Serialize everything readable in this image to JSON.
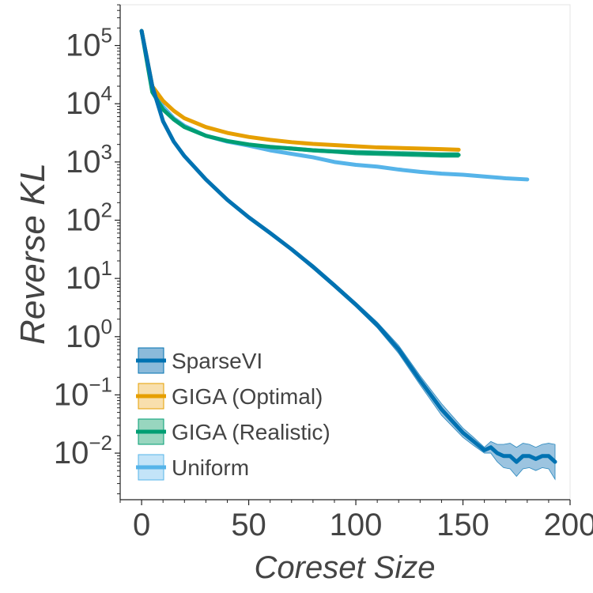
{
  "chart_data": {
    "type": "line",
    "xlabel": "Coreset Size",
    "ylabel": "Reverse KL",
    "xlim": [
      -10,
      200
    ],
    "ylim_log10": [
      -2.8,
      5.7
    ],
    "yscale": "log",
    "grid": false,
    "legend_position": "bottom-left",
    "x_ticks": [
      0,
      50,
      100,
      150,
      200
    ],
    "x_tick_labels": [
      "0",
      "50",
      "100",
      "150",
      "200"
    ],
    "y_ticks_log10": [
      5,
      4,
      3,
      2,
      1,
      0,
      -1,
      -2
    ],
    "y_tick_base": "10",
    "y_tick_exponents": [
      "5",
      "4",
      "3",
      "2",
      "1",
      "0",
      "−1",
      "−2"
    ],
    "series": [
      {
        "name": "SparseVI",
        "color": "#0072B2",
        "band_color": "#5a9ccb",
        "x": [
          0,
          5,
          10,
          15,
          20,
          30,
          40,
          50,
          60,
          70,
          80,
          90,
          100,
          110,
          120,
          130,
          140,
          150,
          155,
          160,
          163,
          166,
          169,
          172,
          175,
          178,
          181,
          184,
          187,
          190,
          193
        ],
        "y_log10": [
          5.25,
          4.3,
          3.7,
          3.35,
          3.1,
          2.7,
          2.35,
          2.05,
          1.78,
          1.5,
          1.2,
          0.88,
          0.55,
          0.2,
          -0.22,
          -0.75,
          -1.25,
          -1.65,
          -1.8,
          -1.95,
          -1.9,
          -2.0,
          -2.05,
          -2.05,
          -2.15,
          -2.05,
          -2.05,
          -2.1,
          -2.05,
          -2.05,
          -2.15
        ],
        "band_halfwidth_log10": [
          0.02,
          0.02,
          0.02,
          0.02,
          0.02,
          0.02,
          0.02,
          0.02,
          0.02,
          0.03,
          0.04,
          0.04,
          0.04,
          0.05,
          0.07,
          0.08,
          0.1,
          0.08,
          0.07,
          0.05,
          0.1,
          0.15,
          0.2,
          0.22,
          0.25,
          0.22,
          0.2,
          0.2,
          0.2,
          0.22,
          0.3
        ]
      },
      {
        "name": "GIGA (Optimal)",
        "color": "#E69F00",
        "band_color": "#f5d28a",
        "x": [
          0,
          5,
          10,
          15,
          20,
          30,
          40,
          50,
          60,
          70,
          80,
          90,
          100,
          110,
          120,
          130,
          140,
          148
        ],
        "y_log10": [
          5.25,
          4.3,
          4.05,
          3.88,
          3.75,
          3.6,
          3.5,
          3.43,
          3.38,
          3.34,
          3.31,
          3.29,
          3.27,
          3.25,
          3.24,
          3.23,
          3.22,
          3.21
        ],
        "band_halfwidth_log10": [
          0.02,
          0.02,
          0.02,
          0.02,
          0.02,
          0.02,
          0.02,
          0.02,
          0.02,
          0.02,
          0.02,
          0.02,
          0.02,
          0.02,
          0.02,
          0.02,
          0.02,
          0.02
        ]
      },
      {
        "name": "GIGA (Realistic)",
        "color": "#009E73",
        "band_color": "#6cc4a4",
        "x": [
          0,
          5,
          10,
          15,
          20,
          30,
          40,
          50,
          60,
          70,
          80,
          90,
          100,
          110,
          120,
          130,
          140,
          148
        ],
        "y_log10": [
          5.25,
          4.2,
          3.9,
          3.73,
          3.6,
          3.45,
          3.36,
          3.3,
          3.26,
          3.23,
          3.2,
          3.18,
          3.16,
          3.15,
          3.14,
          3.13,
          3.12,
          3.12
        ],
        "band_halfwidth_log10": [
          0.02,
          0.02,
          0.02,
          0.02,
          0.02,
          0.02,
          0.02,
          0.02,
          0.02,
          0.03,
          0.03,
          0.03,
          0.04,
          0.04,
          0.04,
          0.04,
          0.04,
          0.04
        ]
      },
      {
        "name": "Uniform",
        "color": "#56B4E9",
        "band_color": "#a9d9f5",
        "x": [
          0,
          5,
          10,
          15,
          20,
          30,
          40,
          50,
          60,
          70,
          80,
          90,
          100,
          110,
          120,
          130,
          140,
          150,
          160,
          170,
          180
        ],
        "y_log10": [
          5.25,
          4.3,
          3.95,
          3.75,
          3.62,
          3.45,
          3.35,
          3.28,
          3.2,
          3.14,
          3.08,
          3.0,
          2.95,
          2.92,
          2.87,
          2.83,
          2.8,
          2.78,
          2.75,
          2.72,
          2.7
        ],
        "band_halfwidth_log10": [
          0.02,
          0.02,
          0.02,
          0.02,
          0.02,
          0.02,
          0.02,
          0.02,
          0.02,
          0.02,
          0.02,
          0.02,
          0.02,
          0.02,
          0.02,
          0.02,
          0.02,
          0.02,
          0.02,
          0.02,
          0.02
        ]
      }
    ]
  }
}
